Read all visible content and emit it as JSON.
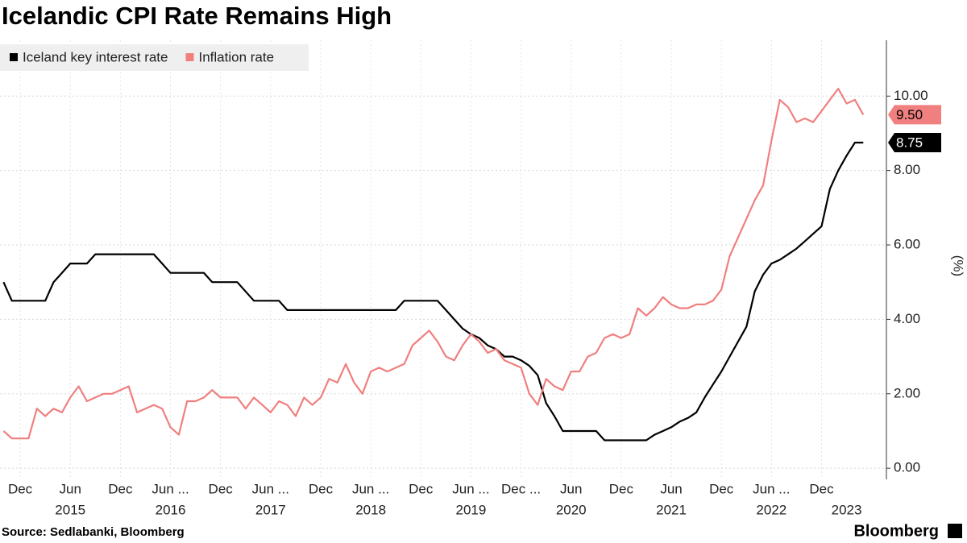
{
  "chart_data": {
    "type": "line",
    "title": "Icelandic CPI Rate Remains High",
    "source": "Source: Sedlabanki, Bloomberg",
    "brand": "Bloomberg",
    "ylabel": "(%)",
    "x": [
      "2014-10",
      "2014-11",
      "2014-12",
      "2015-01",
      "2015-02",
      "2015-03",
      "2015-04",
      "2015-05",
      "2015-06",
      "2015-07",
      "2015-08",
      "2015-09",
      "2015-10",
      "2015-11",
      "2015-12",
      "2016-01",
      "2016-02",
      "2016-03",
      "2016-04",
      "2016-05",
      "2016-06",
      "2016-07",
      "2016-08",
      "2016-09",
      "2016-10",
      "2016-11",
      "2016-12",
      "2017-01",
      "2017-02",
      "2017-03",
      "2017-04",
      "2017-05",
      "2017-06",
      "2017-07",
      "2017-08",
      "2017-09",
      "2017-10",
      "2017-11",
      "2017-12",
      "2018-01",
      "2018-02",
      "2018-03",
      "2018-04",
      "2018-05",
      "2018-06",
      "2018-07",
      "2018-08",
      "2018-09",
      "2018-10",
      "2018-11",
      "2018-12",
      "2019-01",
      "2019-02",
      "2019-03",
      "2019-04",
      "2019-05",
      "2019-06",
      "2019-07",
      "2019-08",
      "2019-09",
      "2019-10",
      "2019-11",
      "2019-12",
      "2020-01",
      "2020-02",
      "2020-03",
      "2020-04",
      "2020-05",
      "2020-06",
      "2020-07",
      "2020-08",
      "2020-09",
      "2020-10",
      "2020-11",
      "2020-12",
      "2021-01",
      "2021-02",
      "2021-03",
      "2021-04",
      "2021-05",
      "2021-06",
      "2021-07",
      "2021-08",
      "2021-09",
      "2021-10",
      "2021-11",
      "2021-12",
      "2022-01",
      "2022-02",
      "2022-03",
      "2022-04",
      "2022-05",
      "2022-06",
      "2022-07",
      "2022-08",
      "2022-09",
      "2022-10",
      "2022-11",
      "2022-12",
      "2023-01",
      "2023-02",
      "2023-03",
      "2023-04",
      "2023-05"
    ],
    "series": [
      {
        "name": "Iceland key interest rate",
        "color": "#000000",
        "end_label": "8.75",
        "values": [
          5.0,
          4.5,
          4.5,
          4.5,
          4.5,
          4.5,
          5.0,
          5.25,
          5.5,
          5.5,
          5.5,
          5.75,
          5.75,
          5.75,
          5.75,
          5.75,
          5.75,
          5.75,
          5.75,
          5.5,
          5.25,
          5.25,
          5.25,
          5.25,
          5.25,
          5.0,
          5.0,
          5.0,
          5.0,
          4.75,
          4.5,
          4.5,
          4.5,
          4.5,
          4.25,
          4.25,
          4.25,
          4.25,
          4.25,
          4.25,
          4.25,
          4.25,
          4.25,
          4.25,
          4.25,
          4.25,
          4.25,
          4.25,
          4.5,
          4.5,
          4.5,
          4.5,
          4.5,
          4.25,
          4.0,
          3.75,
          3.6,
          3.5,
          3.3,
          3.2,
          3.0,
          3.0,
          2.9,
          2.75,
          2.5,
          1.75,
          1.4,
          1.0,
          1.0,
          1.0,
          1.0,
          1.0,
          0.75,
          0.75,
          0.75,
          0.75,
          0.75,
          0.75,
          0.9,
          1.0,
          1.1,
          1.25,
          1.35,
          1.5,
          1.9,
          2.25,
          2.6,
          3.0,
          3.4,
          3.8,
          4.75,
          5.2,
          5.5,
          5.6,
          5.75,
          5.9,
          6.1,
          6.3,
          6.5,
          7.5,
          8.0,
          8.4,
          8.75,
          8.75
        ]
      },
      {
        "name": "Inflation rate",
        "color": "#f07f7f",
        "end_label": "9.50",
        "values": [
          1.0,
          0.8,
          0.8,
          0.8,
          1.6,
          1.4,
          1.6,
          1.5,
          1.9,
          2.2,
          1.8,
          1.9,
          2.0,
          2.0,
          2.1,
          2.2,
          1.5,
          1.6,
          1.7,
          1.6,
          1.1,
          0.9,
          1.8,
          1.8,
          1.9,
          2.1,
          1.9,
          1.9,
          1.9,
          1.6,
          1.9,
          1.7,
          1.5,
          1.8,
          1.7,
          1.4,
          1.9,
          1.7,
          1.9,
          2.4,
          2.3,
          2.8,
          2.3,
          2.0,
          2.6,
          2.7,
          2.6,
          2.7,
          2.8,
          3.3,
          3.5,
          3.7,
          3.4,
          3.0,
          2.9,
          3.3,
          3.6,
          3.4,
          3.1,
          3.2,
          2.9,
          2.8,
          2.7,
          2.0,
          1.7,
          2.4,
          2.2,
          2.1,
          2.6,
          2.6,
          3.0,
          3.1,
          3.5,
          3.6,
          3.5,
          3.6,
          4.3,
          4.1,
          4.3,
          4.6,
          4.4,
          4.3,
          4.3,
          4.4,
          4.4,
          4.5,
          4.8,
          5.7,
          6.2,
          6.7,
          7.2,
          7.6,
          8.8,
          9.9,
          9.7,
          9.3,
          9.4,
          9.3,
          9.6,
          9.9,
          10.2,
          9.8,
          9.9,
          9.5
        ]
      }
    ],
    "xlim": [
      "2014-09",
      "2023-07"
    ],
    "xticks": [
      {
        "value": "2014-12",
        "label": "Dec"
      },
      {
        "value": "2015-06",
        "label": "Jun"
      },
      {
        "value": "2015-12",
        "label": "Dec"
      },
      {
        "value": "2016-06",
        "label": "Jun ..."
      },
      {
        "value": "2016-12",
        "label": "Dec"
      },
      {
        "value": "2017-06",
        "label": "Jun ..."
      },
      {
        "value": "2017-12",
        "label": "Dec"
      },
      {
        "value": "2018-06",
        "label": "Jun ..."
      },
      {
        "value": "2018-12",
        "label": "Dec"
      },
      {
        "value": "2019-06",
        "label": "Jun ..."
      },
      {
        "value": "2019-12",
        "label": "Dec ..."
      },
      {
        "value": "2020-06",
        "label": "Jun"
      },
      {
        "value": "2020-12",
        "label": "Dec"
      },
      {
        "value": "2021-06",
        "label": "Jun"
      },
      {
        "value": "2021-12",
        "label": "Dec"
      },
      {
        "value": "2022-06",
        "label": "Jun ..."
      },
      {
        "value": "2022-12",
        "label": "Dec"
      }
    ],
    "xyears": [
      {
        "value": "2015-06",
        "label": "2015"
      },
      {
        "value": "2016-06",
        "label": "2016"
      },
      {
        "value": "2017-06",
        "label": "2017"
      },
      {
        "value": "2018-06",
        "label": "2018"
      },
      {
        "value": "2019-06",
        "label": "2019"
      },
      {
        "value": "2020-06",
        "label": "2020"
      },
      {
        "value": "2021-06",
        "label": "2021"
      },
      {
        "value": "2022-06",
        "label": "2022"
      },
      {
        "value": "2023-03",
        "label": "2023"
      }
    ],
    "ylim": [
      -0.3,
      11.5
    ],
    "yticks": [
      {
        "value": 0,
        "label": "0.00"
      },
      {
        "value": 2,
        "label": "2.00"
      },
      {
        "value": 4,
        "label": "4.00"
      },
      {
        "value": 6,
        "label": "6.00"
      },
      {
        "value": 8,
        "label": "8.00"
      },
      {
        "value": 10,
        "label": "10.00"
      }
    ],
    "grid": true,
    "legend": "top-left"
  }
}
